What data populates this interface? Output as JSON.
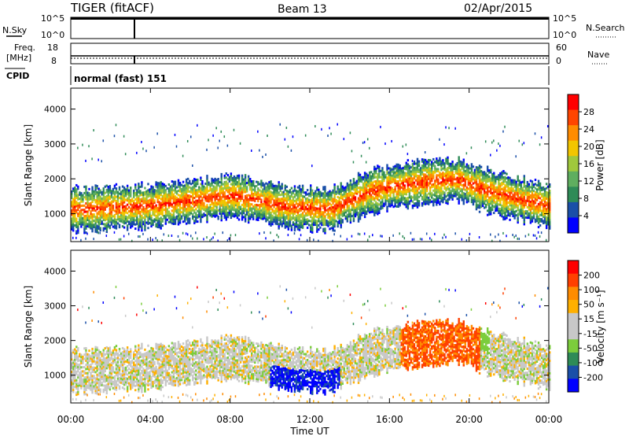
{
  "header": {
    "title": "TIGER (fitACF)",
    "beam": "Beam 13",
    "date": "02/Apr/2015"
  },
  "params": {
    "nsky_label": "N.Sky",
    "nsky_ticks": [
      "10^5",
      "10^0"
    ],
    "nsearch_label": "N.Search",
    "nsearch_ticks": [
      "10^5",
      "10^0"
    ],
    "freq_label_1": "Freq.",
    "freq_label_2": "[MHz]",
    "freq_ticks": [
      "18",
      "8"
    ],
    "nave_label": "Nave",
    "nave_ticks": [
      "60",
      "0"
    ],
    "cpid_label": "CPID",
    "cpid_text": "normal (fast) 151"
  },
  "colors": {
    "power_scale": [
      "#0000ff",
      "#1a4fa8",
      "#2e8b57",
      "#5fae5f",
      "#a0c83c",
      "#f2c500",
      "#ff8c00",
      "#ff4500",
      "#ff0000"
    ],
    "velocity_scale": [
      "#0000ff",
      "#1a4fa8",
      "#2e8b57",
      "#7ccd3c",
      "#c8c8c8",
      "#c8c8c8",
      "#ffb000",
      "#ff8c00",
      "#ff4000",
      "#ff0000"
    ]
  },
  "chart_data": [
    {
      "type": "heatmap",
      "panel": "power",
      "ylabel": "Slant Range [km]",
      "yticks": [
        "4000",
        "3000",
        "2000",
        "1000"
      ],
      "ylim": [
        200,
        4600
      ],
      "xlim": [
        "00:00",
        "24:00"
      ],
      "colorbar": {
        "label": "Power [dB]",
        "ticks": [
          "28",
          "24",
          "20",
          "16",
          "12",
          "8",
          "4"
        ],
        "range": [
          0,
          32
        ]
      },
      "echo_band": {
        "center_range_km": [
          1100,
          1150,
          1200,
          1350,
          1500,
          1350,
          1150,
          1100,
          1600,
          1750,
          1900,
          1950,
          1600,
          1200
        ],
        "hours": [
          0,
          2,
          4,
          6,
          8,
          9.5,
          11,
          13,
          15,
          16,
          18,
          19.5,
          21,
          24
        ]
      }
    },
    {
      "type": "heatmap",
      "panel": "velocity",
      "ylabel": "Slant Range [km]",
      "yticks": [
        "4000",
        "3000",
        "2000",
        "1000"
      ],
      "ylim": [
        200,
        4600
      ],
      "xlim": [
        "00:00",
        "24:00"
      ],
      "colorbar": {
        "label": "Velocity [m s⁻¹]",
        "ticks": [
          "200",
          "100",
          "50",
          "15",
          "-15",
          "-50",
          "-100",
          "-200"
        ],
        "range": [
          -250,
          250
        ]
      }
    }
  ],
  "xaxis": {
    "ticks": [
      "00:00",
      "04:00",
      "08:00",
      "12:00",
      "16:00",
      "20:00",
      "00:00"
    ],
    "label": "Time UT"
  }
}
